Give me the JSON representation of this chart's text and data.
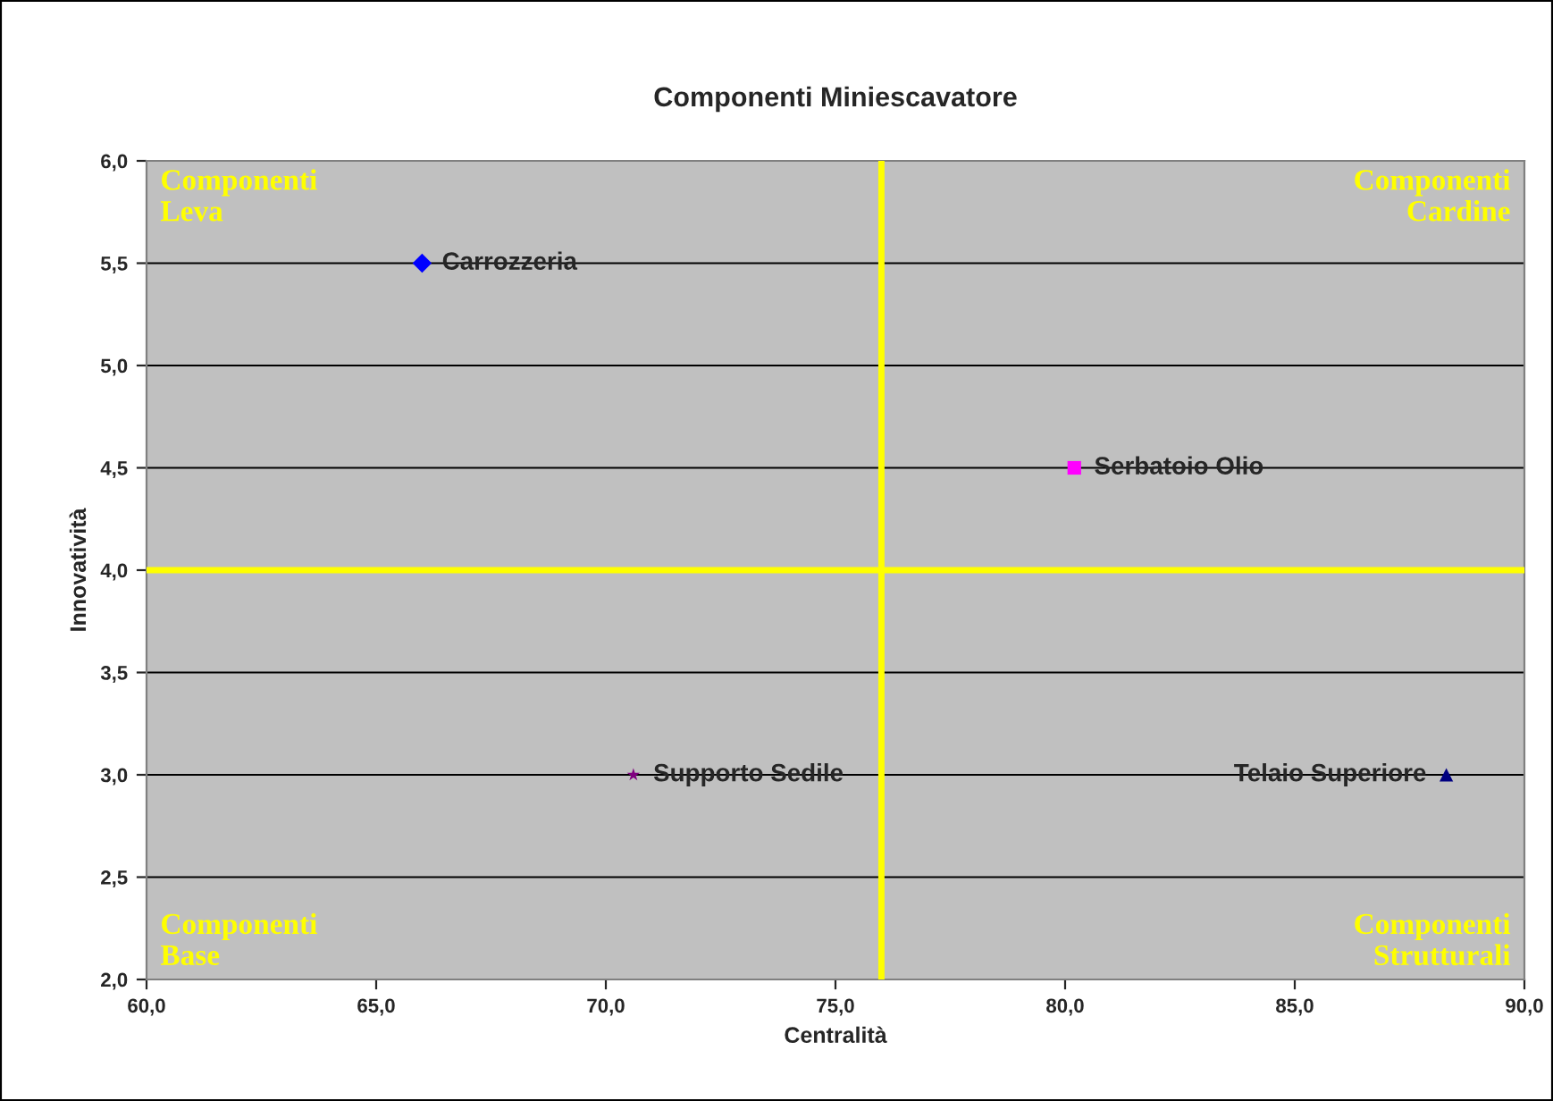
{
  "chart_data": {
    "type": "scatter",
    "title": "Componenti Miniescavatore",
    "xlabel": "Centralità",
    "ylabel": "Innovatività",
    "series": [
      {
        "name": "Carrozzeria",
        "color": "#0000ff",
        "marker": "diamond",
        "x": [
          66.0
        ],
        "values": [
          5.5
        ]
      },
      {
        "name": "Serbatoio Olio",
        "color": "#ff00ff",
        "marker": "square",
        "x": [
          80.2
        ],
        "values": [
          4.5
        ]
      },
      {
        "name": "Supporto Sedile",
        "color": "#800080",
        "marker": "star",
        "x": [
          70.6
        ],
        "values": [
          3.0
        ]
      },
      {
        "name": "Telaio Superiore",
        "color": "#000080",
        "marker": "triangle",
        "x": [
          88.3
        ],
        "values": [
          3.0
        ]
      }
    ],
    "xlim": [
      60,
      90
    ],
    "ylim": [
      2,
      6
    ],
    "xticks": [
      {
        "value": 60,
        "label": "60,0"
      },
      {
        "value": 65,
        "label": "65,0"
      },
      {
        "value": 70,
        "label": "70,0"
      },
      {
        "value": 75,
        "label": "75,0"
      },
      {
        "value": 80,
        "label": "80,0"
      },
      {
        "value": 85,
        "label": "85,0"
      },
      {
        "value": 90,
        "label": "90,0"
      }
    ],
    "yticks": [
      {
        "value": 2,
        "label": "2,0"
      },
      {
        "value": 2.5,
        "label": "2,5"
      },
      {
        "value": 3,
        "label": "3,0"
      },
      {
        "value": 3.5,
        "label": "3,5"
      },
      {
        "value": 4,
        "label": "4,0"
      },
      {
        "value": 4.5,
        "label": "4,5"
      },
      {
        "value": 5,
        "label": "5,0"
      },
      {
        "value": 5.5,
        "label": "5,5"
      },
      {
        "value": 6,
        "label": "6,0"
      }
    ],
    "grid": "y",
    "ref_lines": [
      {
        "axis": "x",
        "value": 76,
        "color": "#ffff00"
      },
      {
        "axis": "y",
        "value": 4,
        "color": "#ffff00"
      }
    ],
    "annotations": [
      "Componenti\nLeva",
      "Componenti\nCardine",
      "Componenti\nBase",
      "Componenti\nStrutturali"
    ]
  }
}
